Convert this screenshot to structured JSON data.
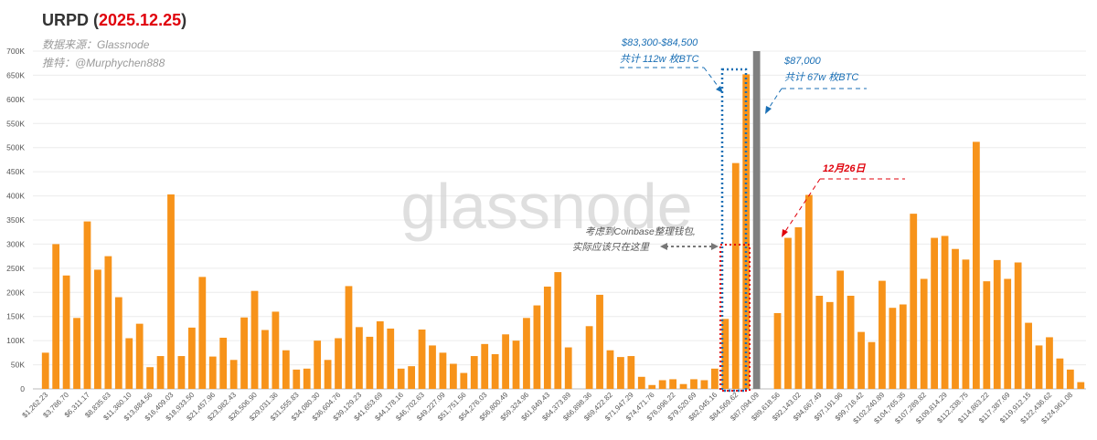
{
  "header": {
    "title_prefix": "URPD (",
    "title_date": "2025.12.25",
    "title_suffix": ")",
    "source_line": "数据来源：Glassnode",
    "author_line": "推特：@Murphychen888",
    "date_color": "#e0000b"
  },
  "watermark": "glassnode",
  "annotations": {
    "box1_line1": "$83,300-$84,500",
    "box1_line2": "共计 112w 枚BTC",
    "price_line1": "$87,000",
    "price_line2": "共计 67w 枚BTC",
    "date_label": "12月26日",
    "coinbase_line1": "考虑到Coinbase整理钱包,",
    "coinbase_line2": "实际应该只在这里",
    "blue": "#1a6fb5",
    "red": "#e0000b"
  },
  "chart_data": {
    "type": "bar",
    "ylim": [
      0,
      700000
    ],
    "yticks": [
      0,
      50000,
      100000,
      150000,
      200000,
      250000,
      300000,
      350000,
      400000,
      450000,
      500000,
      550000,
      600000,
      650000,
      700000
    ],
    "ytick_labels": [
      "0",
      "50K",
      "100K",
      "150K",
      "200K",
      "250K",
      "300K",
      "350K",
      "400K",
      "450K",
      "500K",
      "550K",
      "600K",
      "650K",
      "700K"
    ],
    "xtick_labels": [
      "$1,262.23",
      "$3,786.70",
      "$6,311.17",
      "$8,835.63",
      "$11,360.10",
      "$13,884.56",
      "$16,409.03",
      "$18,933.50",
      "$21,457.96",
      "$23,982.43",
      "$26,506.90",
      "$29,031.36",
      "$31,555.83",
      "$34,080.30",
      "$36,604.76",
      "$39,129.23",
      "$41,653.69",
      "$44,178.16",
      "$46,702.63",
      "$49,227.09",
      "$51,751.56",
      "$54,276.03",
      "$56,800.49",
      "$59,324.96",
      "$61,849.43",
      "$64,373.89",
      "$66,898.36",
      "$69,422.82",
      "$71,947.29",
      "$74,471.76",
      "$76,996.22",
      "$79,520.69",
      "$82,045.16",
      "$84,569.62",
      "$87,094.09",
      "$89,618.56",
      "$92,143.02",
      "$94,667.49",
      "$97,191.96",
      "$99,716.42",
      "$102,240.89",
      "$104,765.35",
      "$107,289.82",
      "$109,814.29",
      "$112,338.75",
      "$114,863.22",
      "$117,387.69",
      "$119,912.15",
      "$122,436.62",
      "$124,961.08"
    ],
    "values": [
      75000,
      300000,
      235000,
      147000,
      347000,
      247000,
      275000,
      190000,
      105000,
      135000,
      45000,
      68000,
      403000,
      68000,
      127000,
      232000,
      67000,
      106000,
      60000,
      148000,
      203000,
      122000,
      160000,
      80000,
      40000,
      42000,
      100000,
      60000,
      105000,
      213000,
      128000,
      108000,
      140000,
      125000,
      42000,
      47000,
      123000,
      90000,
      75000,
      52000,
      33000,
      68000,
      93000,
      72000,
      113000,
      100000,
      147000,
      173000,
      212000,
      242000,
      86000,
      0,
      130000,
      195000,
      80000,
      66000,
      68000,
      25000,
      8000,
      18000,
      20000,
      10000,
      20000,
      18000,
      42000,
      145000,
      468000,
      652000,
      242000,
      0,
      157000,
      313000,
      335000,
      402000,
      193000,
      180000,
      245000,
      193000,
      118000,
      97000,
      224000,
      168000,
      175000,
      363000,
      228000,
      313000,
      317000,
      290000,
      268000,
      512000,
      223000,
      267000,
      228000,
      262000,
      137000,
      90000,
      107000,
      63000,
      40000,
      14000
    ],
    "current_price_bar": "$87,094.09",
    "bar_color": "#f7931a",
    "current_price_color": "#808080",
    "grid": true,
    "legend": "none"
  }
}
